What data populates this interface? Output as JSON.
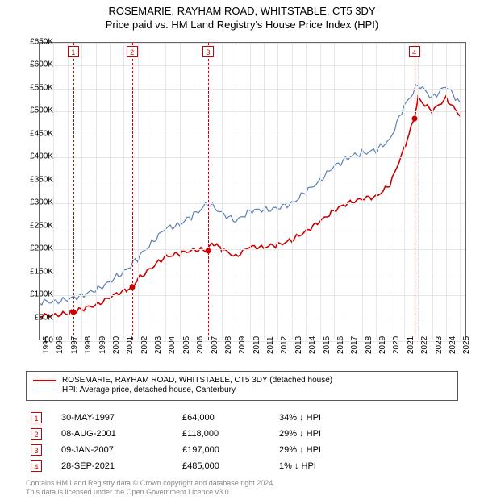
{
  "title1": "ROSEMARIE, RAYHAM ROAD, WHITSTABLE, CT5 3DY",
  "title2": "Price paid vs. HM Land Registry's House Price Index (HPI)",
  "chart": {
    "type": "line",
    "background_color": "#ffffff",
    "grid_color": "#e6e6e6",
    "axis_color": "#666666",
    "x_years": [
      1995,
      1996,
      1997,
      1998,
      1999,
      2000,
      2001,
      2002,
      2003,
      2004,
      2005,
      2006,
      2007,
      2008,
      2009,
      2010,
      2011,
      2012,
      2013,
      2014,
      2015,
      2016,
      2017,
      2018,
      2019,
      2020,
      2021,
      2022,
      2023,
      2024,
      2025
    ],
    "x_domain": [
      1995,
      2025.5
    ],
    "y_ticks": [
      0,
      50,
      100,
      150,
      200,
      250,
      300,
      350,
      400,
      450,
      500,
      550,
      600,
      650
    ],
    "y_domain": [
      0,
      650
    ],
    "y_prefix": "£",
    "y_suffix": "K",
    "series": [
      {
        "name": "hpi",
        "label": "HPI: Average price, detached house, Canterbury",
        "color": "#5a7fb8",
        "width": 1.2,
        "points": [
          [
            1995,
            85
          ],
          [
            1996,
            86
          ],
          [
            1997,
            90
          ],
          [
            1998,
            100
          ],
          [
            1999,
            110
          ],
          [
            2000,
            130
          ],
          [
            2001,
            150
          ],
          [
            2002,
            180
          ],
          [
            2003,
            215
          ],
          [
            2004,
            245
          ],
          [
            2005,
            255
          ],
          [
            2006,
            275
          ],
          [
            2007,
            300
          ],
          [
            2008,
            280
          ],
          [
            2009,
            260
          ],
          [
            2010,
            285
          ],
          [
            2011,
            285
          ],
          [
            2012,
            290
          ],
          [
            2013,
            300
          ],
          [
            2014,
            325
          ],
          [
            2015,
            350
          ],
          [
            2016,
            380
          ],
          [
            2017,
            400
          ],
          [
            2018,
            410
          ],
          [
            2019,
            415
          ],
          [
            2020,
            440
          ],
          [
            2021,
            510
          ],
          [
            2022,
            560
          ],
          [
            2023,
            530
          ],
          [
            2024,
            555
          ],
          [
            2025,
            520
          ]
        ]
      },
      {
        "name": "property",
        "label": "ROSEMARIE, RAYHAM ROAD, WHITSTABLE, CT5 3DY (detached house)",
        "color": "#cc0000",
        "width": 1.6,
        "points": [
          [
            1995,
            55
          ],
          [
            1996,
            57
          ],
          [
            1997,
            60
          ],
          [
            1997.4,
            64
          ],
          [
            1998,
            70
          ],
          [
            1999,
            78
          ],
          [
            2000,
            95
          ],
          [
            2001,
            110
          ],
          [
            2001.6,
            118
          ],
          [
            2002,
            135
          ],
          [
            2003,
            160
          ],
          [
            2004,
            185
          ],
          [
            2005,
            190
          ],
          [
            2006,
            200
          ],
          [
            2007.02,
            197
          ],
          [
            2007.3,
            215
          ],
          [
            2008,
            200
          ],
          [
            2009,
            185
          ],
          [
            2010,
            205
          ],
          [
            2011,
            205
          ],
          [
            2012,
            210
          ],
          [
            2013,
            220
          ],
          [
            2014,
            240
          ],
          [
            2015,
            260
          ],
          [
            2016,
            285
          ],
          [
            2017,
            300
          ],
          [
            2018,
            310
          ],
          [
            2019,
            315
          ],
          [
            2020,
            340
          ],
          [
            2021,
            420
          ],
          [
            2021.74,
            485
          ],
          [
            2022,
            530
          ],
          [
            2023,
            500
          ],
          [
            2024,
            530
          ],
          [
            2025,
            490
          ]
        ]
      }
    ],
    "sale_markers": [
      {
        "n": "1",
        "year": 1997.41,
        "price_k": 64
      },
      {
        "n": "2",
        "year": 2001.6,
        "price_k": 118
      },
      {
        "n": "3",
        "year": 2007.02,
        "price_k": 197
      },
      {
        "n": "4",
        "year": 2021.74,
        "price_k": 485
      }
    ],
    "marker_color": "#cc0000",
    "label_fontsize": 10
  },
  "legend": {
    "rows": [
      {
        "color": "#cc0000",
        "width": 2,
        "text": "ROSEMARIE, RAYHAM ROAD, WHITSTABLE, CT5 3DY (detached house)"
      },
      {
        "color": "#5a7fb8",
        "width": 1.2,
        "text": "HPI: Average price, detached house, Canterbury"
      }
    ]
  },
  "sales": [
    {
      "n": "1",
      "date": "30-MAY-1997",
      "price": "£64,000",
      "diff": "34%",
      "dir": "↓",
      "tag": "HPI"
    },
    {
      "n": "2",
      "date": "08-AUG-2001",
      "price": "£118,000",
      "diff": "29%",
      "dir": "↓",
      "tag": "HPI"
    },
    {
      "n": "3",
      "date": "09-JAN-2007",
      "price": "£197,000",
      "diff": "29%",
      "dir": "↓",
      "tag": "HPI"
    },
    {
      "n": "4",
      "date": "28-SEP-2021",
      "price": "£485,000",
      "diff": "1%",
      "dir": "↓",
      "tag": "HPI"
    }
  ],
  "footer": {
    "line1": "Contains HM Land Registry data © Crown copyright and database right 2024.",
    "line2": "This data is licensed under the Open Government Licence v3.0."
  }
}
